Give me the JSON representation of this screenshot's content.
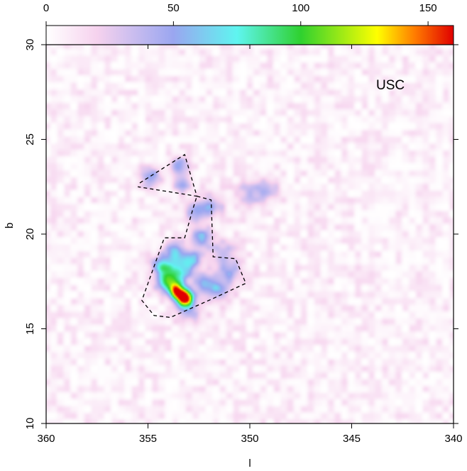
{
  "chart_data": {
    "type": "heatmap",
    "title": "",
    "xlabel": "l",
    "ylabel": "b",
    "xlim": [
      360,
      340
    ],
    "ylim": [
      10,
      30
    ],
    "xticks": [
      360,
      355,
      350,
      345,
      340
    ],
    "yticks": [
      10,
      15,
      20,
      25,
      30
    ],
    "colorbar": {
      "range": [
        0,
        160
      ],
      "ticks": [
        0,
        50,
        100,
        150
      ],
      "stops": [
        {
          "value": 0,
          "color": "#ffffff"
        },
        {
          "value": 20,
          "color": "#f6d2ee"
        },
        {
          "value": 50,
          "color": "#9aa6f0"
        },
        {
          "value": 75,
          "color": "#5ff5f0"
        },
        {
          "value": 100,
          "color": "#2fd12f"
        },
        {
          "value": 130,
          "color": "#ffff00"
        },
        {
          "value": 145,
          "color": "#ff7a00"
        },
        {
          "value": 160,
          "color": "#e00000"
        }
      ]
    },
    "background_level": 8,
    "annotation": "USC",
    "blobs": [
      {
        "l": 353.2,
        "b": 16.6,
        "peak": 150,
        "sigma": 0.3
      },
      {
        "l": 353.6,
        "b": 17.0,
        "peak": 120,
        "sigma": 0.3
      },
      {
        "l": 354.1,
        "b": 17.5,
        "peak": 85,
        "sigma": 0.35
      },
      {
        "l": 354.3,
        "b": 18.3,
        "peak": 60,
        "sigma": 0.35
      },
      {
        "l": 353.5,
        "b": 18.0,
        "peak": 60,
        "sigma": 0.4
      },
      {
        "l": 352.9,
        "b": 18.6,
        "peak": 55,
        "sigma": 0.35
      },
      {
        "l": 353.7,
        "b": 19.0,
        "peak": 55,
        "sigma": 0.35
      },
      {
        "l": 352.4,
        "b": 19.8,
        "peak": 48,
        "sigma": 0.4
      },
      {
        "l": 352.6,
        "b": 21.2,
        "peak": 40,
        "sigma": 0.4
      },
      {
        "l": 351.9,
        "b": 21.5,
        "peak": 35,
        "sigma": 0.4
      },
      {
        "l": 352.2,
        "b": 17.4,
        "peak": 48,
        "sigma": 0.4
      },
      {
        "l": 351.5,
        "b": 17.0,
        "peak": 40,
        "sigma": 0.4
      },
      {
        "l": 351.0,
        "b": 18.0,
        "peak": 40,
        "sigma": 0.4
      },
      {
        "l": 351.3,
        "b": 19.0,
        "peak": 32,
        "sigma": 0.4
      },
      {
        "l": 354.9,
        "b": 23.0,
        "peak": 48,
        "sigma": 0.35
      },
      {
        "l": 353.5,
        "b": 23.6,
        "peak": 48,
        "sigma": 0.3
      },
      {
        "l": 353.3,
        "b": 22.7,
        "peak": 40,
        "sigma": 0.3
      },
      {
        "l": 349.2,
        "b": 22.4,
        "peak": 30,
        "sigma": 0.4
      },
      {
        "l": 350.0,
        "b": 22.1,
        "peak": 25,
        "sigma": 0.5
      },
      {
        "l": 353.0,
        "b": 15.9,
        "peak": 28,
        "sigma": 0.45
      }
    ],
    "polygons": [
      [
        [
          355.4,
          22.7
        ],
        [
          353.2,
          24.2
        ],
        [
          352.6,
          22.0
        ],
        [
          355.5,
          22.5
        ]
      ],
      [
        [
          352.6,
          22.0
        ],
        [
          351.9,
          21.8
        ],
        [
          351.8,
          18.8
        ],
        [
          350.7,
          18.7
        ],
        [
          350.2,
          17.4
        ],
        [
          351.8,
          16.6
        ],
        [
          353.9,
          15.6
        ],
        [
          354.7,
          15.7
        ],
        [
          355.3,
          16.5
        ],
        [
          354.2,
          19.8
        ],
        [
          353.2,
          19.8
        ],
        [
          352.8,
          21.3
        ],
        [
          352.6,
          22.0
        ]
      ]
    ]
  }
}
